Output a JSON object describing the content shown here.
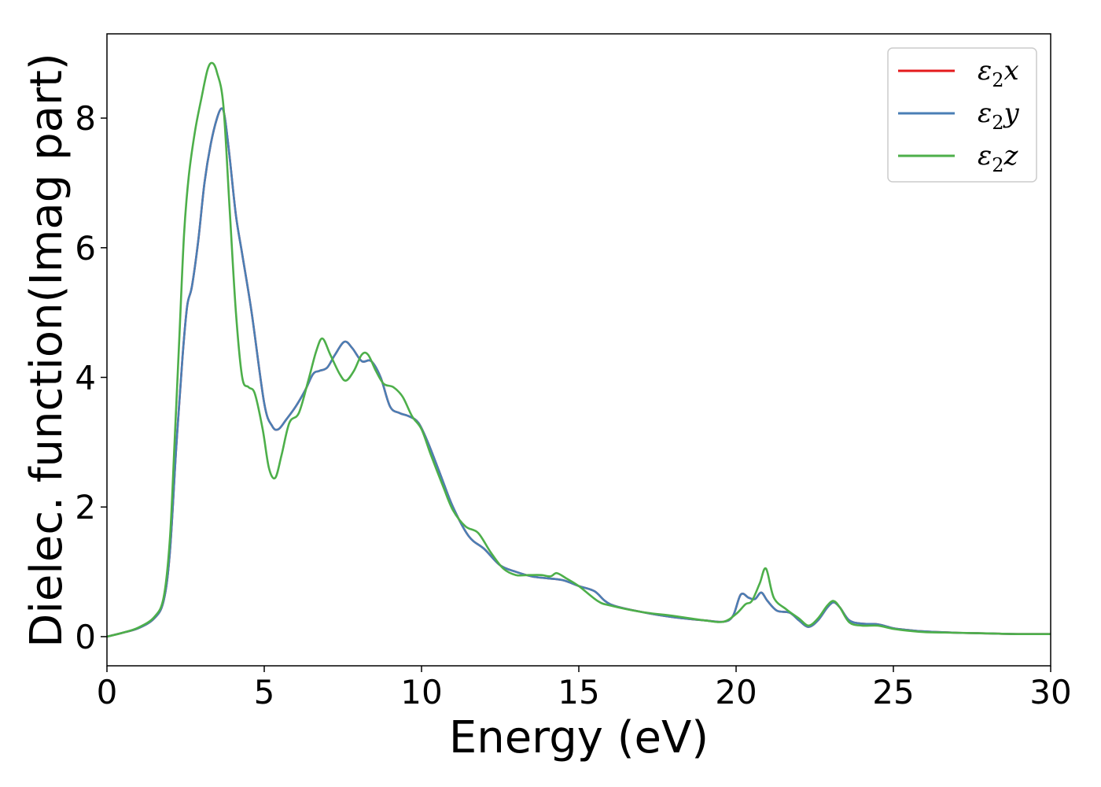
{
  "chart_data": {
    "type": "line",
    "xlabel": "Energy (eV)",
    "ylabel": "Dielec. function(Imag part)",
    "xlim": [
      0,
      30
    ],
    "ylim": [
      -0.45,
      9.3
    ],
    "x_ticks": [
      0,
      5,
      10,
      15,
      20,
      25,
      30
    ],
    "y_ticks": [
      0,
      2,
      4,
      6,
      8
    ],
    "legend_position": "top-right",
    "grid": false,
    "series": [
      {
        "name": "ε2x",
        "legend_base": "ε",
        "legend_sub": "2",
        "legend_var": "x",
        "color": "#e41a1c",
        "x": [
          0,
          0.5,
          1.0,
          1.5,
          1.8,
          2.0,
          2.2,
          2.4,
          2.55,
          2.7,
          2.9,
          3.1,
          3.3,
          3.5,
          3.65,
          3.75,
          3.9,
          4.1,
          4.3,
          4.6,
          5.0,
          5.25,
          5.45,
          5.7,
          6.0,
          6.3,
          6.55,
          6.75,
          7.0,
          7.25,
          7.55,
          7.8,
          8.1,
          8.4,
          8.7,
          9.0,
          9.3,
          9.6,
          9.9,
          10.2,
          10.6,
          11.0,
          11.5,
          12.0,
          12.5,
          13.0,
          13.5,
          14.0,
          14.5,
          15.0,
          15.5,
          16.0,
          17.0,
          18.0,
          19.0,
          19.6,
          19.9,
          20.15,
          20.4,
          20.6,
          20.8,
          21.0,
          21.3,
          21.7,
          22.0,
          22.3,
          22.6,
          22.9,
          23.1,
          23.3,
          23.6,
          24.0,
          24.5,
          25.0,
          25.5,
          26.0,
          27.0,
          28.0,
          29.0,
          30.0
        ],
        "values": [
          0.0,
          0.06,
          0.13,
          0.28,
          0.55,
          1.3,
          2.9,
          4.3,
          5.1,
          5.4,
          6.1,
          7.0,
          7.6,
          8.0,
          8.15,
          8.0,
          7.4,
          6.5,
          5.9,
          5.0,
          3.6,
          3.25,
          3.2,
          3.35,
          3.55,
          3.8,
          4.05,
          4.1,
          4.15,
          4.35,
          4.55,
          4.45,
          4.25,
          4.25,
          4.0,
          3.55,
          3.45,
          3.4,
          3.3,
          3.0,
          2.5,
          2.0,
          1.55,
          1.35,
          1.1,
          1.0,
          0.93,
          0.9,
          0.87,
          0.78,
          0.7,
          0.5,
          0.38,
          0.3,
          0.25,
          0.23,
          0.32,
          0.65,
          0.6,
          0.58,
          0.68,
          0.55,
          0.4,
          0.37,
          0.25,
          0.15,
          0.25,
          0.45,
          0.53,
          0.45,
          0.25,
          0.2,
          0.19,
          0.13,
          0.1,
          0.08,
          0.06,
          0.05,
          0.04,
          0.04
        ]
      },
      {
        "name": "ε2y",
        "legend_base": "ε",
        "legend_sub": "2",
        "legend_var": "y",
        "color": "#4a7fb5",
        "x": [
          0,
          0.5,
          1.0,
          1.5,
          1.8,
          2.0,
          2.2,
          2.4,
          2.55,
          2.7,
          2.9,
          3.1,
          3.3,
          3.5,
          3.65,
          3.75,
          3.9,
          4.1,
          4.3,
          4.6,
          5.0,
          5.25,
          5.45,
          5.7,
          6.0,
          6.3,
          6.55,
          6.75,
          7.0,
          7.25,
          7.55,
          7.8,
          8.1,
          8.4,
          8.7,
          9.0,
          9.3,
          9.6,
          9.9,
          10.2,
          10.6,
          11.0,
          11.5,
          12.0,
          12.5,
          13.0,
          13.5,
          14.0,
          14.5,
          15.0,
          15.5,
          16.0,
          17.0,
          18.0,
          19.0,
          19.6,
          19.9,
          20.15,
          20.4,
          20.6,
          20.8,
          21.0,
          21.3,
          21.7,
          22.0,
          22.3,
          22.6,
          22.9,
          23.1,
          23.3,
          23.6,
          24.0,
          24.5,
          25.0,
          25.5,
          26.0,
          27.0,
          28.0,
          29.0,
          30.0
        ],
        "values": [
          0.0,
          0.06,
          0.13,
          0.28,
          0.55,
          1.3,
          2.9,
          4.3,
          5.1,
          5.4,
          6.1,
          7.0,
          7.6,
          8.0,
          8.15,
          8.0,
          7.4,
          6.5,
          5.9,
          5.0,
          3.6,
          3.25,
          3.2,
          3.35,
          3.55,
          3.8,
          4.05,
          4.1,
          4.15,
          4.35,
          4.55,
          4.45,
          4.25,
          4.25,
          4.0,
          3.55,
          3.45,
          3.4,
          3.3,
          3.0,
          2.5,
          2.0,
          1.55,
          1.35,
          1.1,
          1.0,
          0.93,
          0.9,
          0.87,
          0.78,
          0.7,
          0.5,
          0.38,
          0.3,
          0.25,
          0.23,
          0.32,
          0.65,
          0.6,
          0.58,
          0.68,
          0.55,
          0.4,
          0.37,
          0.25,
          0.15,
          0.25,
          0.45,
          0.53,
          0.45,
          0.25,
          0.2,
          0.19,
          0.13,
          0.1,
          0.08,
          0.06,
          0.05,
          0.04,
          0.04
        ]
      },
      {
        "name": "ε2z",
        "legend_base": "ε",
        "legend_sub": "2",
        "legend_var": "z",
        "color": "#4daf4a",
        "x": [
          0,
          0.5,
          1.0,
          1.5,
          1.8,
          2.0,
          2.15,
          2.3,
          2.45,
          2.6,
          2.8,
          3.0,
          3.2,
          3.35,
          3.5,
          3.7,
          3.9,
          4.1,
          4.3,
          4.5,
          4.7,
          4.95,
          5.15,
          5.35,
          5.55,
          5.8,
          6.1,
          6.4,
          6.65,
          6.85,
          7.1,
          7.4,
          7.6,
          7.85,
          8.1,
          8.3,
          8.55,
          8.8,
          9.1,
          9.4,
          9.7,
          10.0,
          10.3,
          10.7,
          11.0,
          11.4,
          11.8,
          12.2,
          12.6,
          13.0,
          13.4,
          13.8,
          14.1,
          14.3,
          14.6,
          15.0,
          15.6,
          16.0,
          17.0,
          18.0,
          19.0,
          19.6,
          20.0,
          20.3,
          20.5,
          20.75,
          20.95,
          21.2,
          21.6,
          22.0,
          22.3,
          22.6,
          22.9,
          23.1,
          23.3,
          23.6,
          24.0,
          24.5,
          25.0,
          25.5,
          26.0,
          27.0,
          28.0,
          29.0,
          30.0
        ],
        "values": [
          0.0,
          0.06,
          0.14,
          0.3,
          0.6,
          1.5,
          3.0,
          4.6,
          6.2,
          7.1,
          7.8,
          8.3,
          8.75,
          8.85,
          8.7,
          8.2,
          6.6,
          5.0,
          4.0,
          3.85,
          3.75,
          3.2,
          2.6,
          2.45,
          2.8,
          3.3,
          3.45,
          3.95,
          4.4,
          4.6,
          4.35,
          4.05,
          3.95,
          4.1,
          4.35,
          4.35,
          4.1,
          3.9,
          3.85,
          3.7,
          3.4,
          3.2,
          2.8,
          2.3,
          1.95,
          1.7,
          1.6,
          1.3,
          1.05,
          0.95,
          0.95,
          0.95,
          0.93,
          0.98,
          0.9,
          0.78,
          0.55,
          0.48,
          0.38,
          0.32,
          0.25,
          0.23,
          0.35,
          0.5,
          0.55,
          0.82,
          1.05,
          0.6,
          0.42,
          0.28,
          0.17,
          0.28,
          0.48,
          0.55,
          0.45,
          0.22,
          0.17,
          0.17,
          0.12,
          0.09,
          0.07,
          0.06,
          0.05,
          0.04,
          0.04
        ]
      }
    ]
  }
}
